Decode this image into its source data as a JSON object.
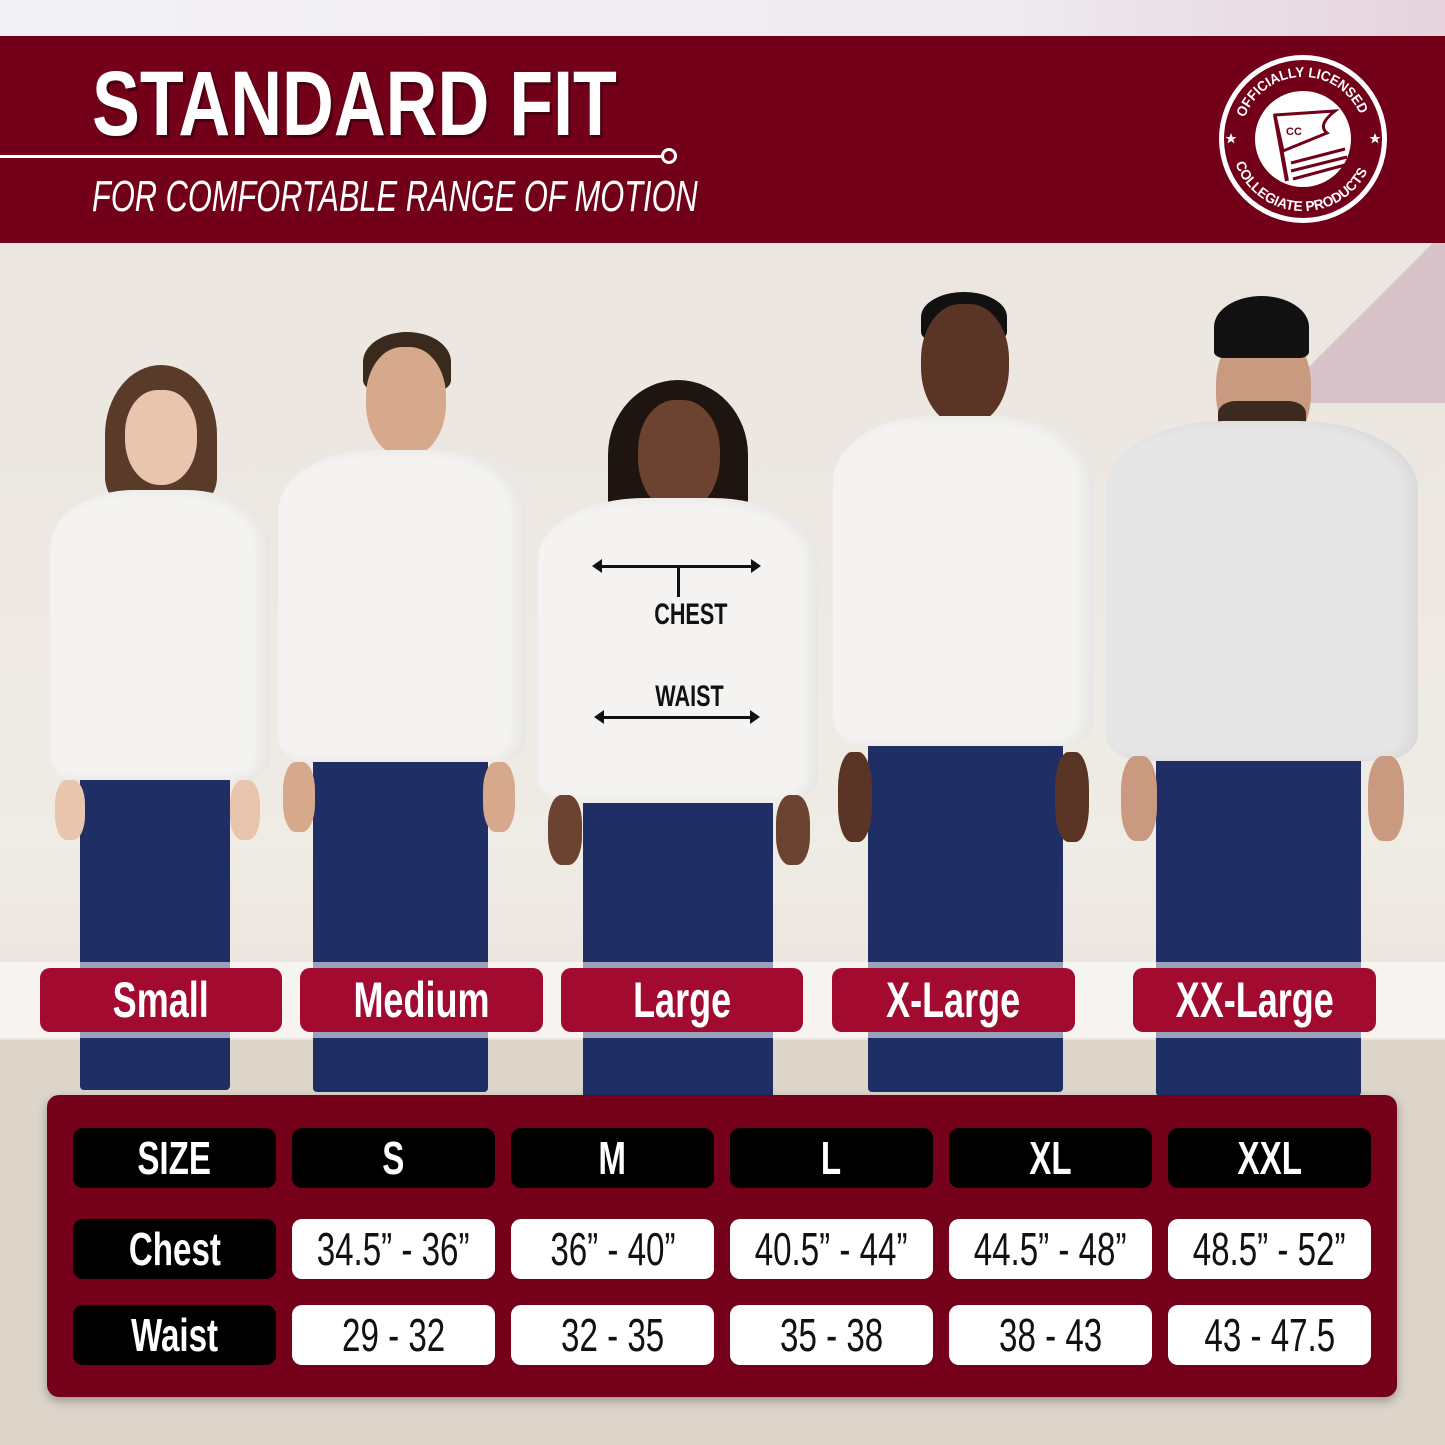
{
  "header": {
    "title": "STANDARD FIT",
    "subtitle": "FOR COMFORTABLE RANGE OF MOTION",
    "brand_color": "#730019"
  },
  "logo": {
    "top_text": "OFFICIALLY LICENSED",
    "bottom_text": "COLLEGIATE PRODUCTS",
    "flag_text": "CC"
  },
  "measure_labels": {
    "chest": "CHEST",
    "waist": "WAIST"
  },
  "models": [
    {
      "label": "Small"
    },
    {
      "label": "Medium"
    },
    {
      "label": "Large"
    },
    {
      "label": "X-Large"
    },
    {
      "label": "XX-Large"
    }
  ],
  "size_chart": {
    "headers": [
      "SIZE",
      "S",
      "M",
      "L",
      "XL",
      "XXL"
    ],
    "rows": [
      {
        "label": "Chest",
        "values": [
          "34.5” - 36”",
          "36” - 40”",
          "40.5” - 44”",
          "44.5” - 48”",
          "48.5” - 52”"
        ]
      },
      {
        "label": "Waist",
        "values": [
          "29 - 32",
          "32 - 35",
          "35 - 38",
          "38 - 43",
          "43 - 47.5"
        ]
      }
    ]
  },
  "colors": {
    "pill": "#a30a30",
    "panel": "#74001a"
  }
}
